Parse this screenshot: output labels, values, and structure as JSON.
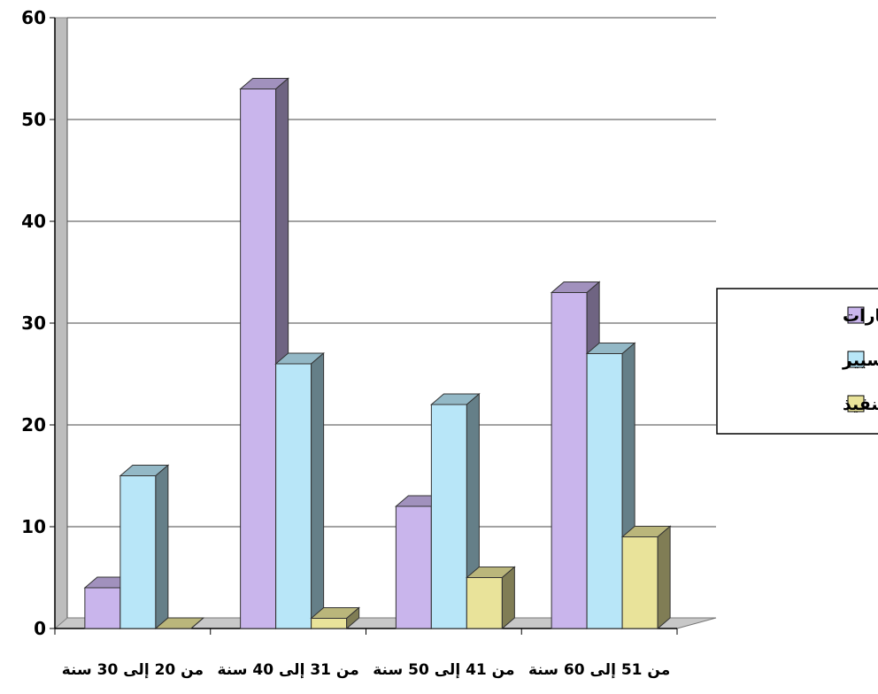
{
  "chart_data": {
    "type": "bar",
    "categories": [
      "من 20 إلى 30 سنة",
      "من 31 إلى 40 سنة",
      "من 41 إلى 50 سنة",
      "من 51 إلى 60 سنة"
    ],
    "series": [
      {
        "name": "الإطارات",
        "values": [
          4,
          53,
          12,
          33
        ],
        "color": "#c9b5ec"
      },
      {
        "name": "التسيير",
        "values": [
          15,
          26,
          22,
          27
        ],
        "color": "#b8e6f8"
      },
      {
        "name": "التنفيذ",
        "values": [
          0,
          1,
          5,
          9
        ],
        "color": "#e9e39a"
      }
    ],
    "title": "",
    "xlabel": "",
    "ylabel": "",
    "ylim": [
      0,
      60
    ],
    "yticks": [
      0,
      10,
      20,
      30,
      40,
      50,
      60
    ],
    "grid": true,
    "legend_position": "right",
    "style": "3d-clustered-column"
  }
}
